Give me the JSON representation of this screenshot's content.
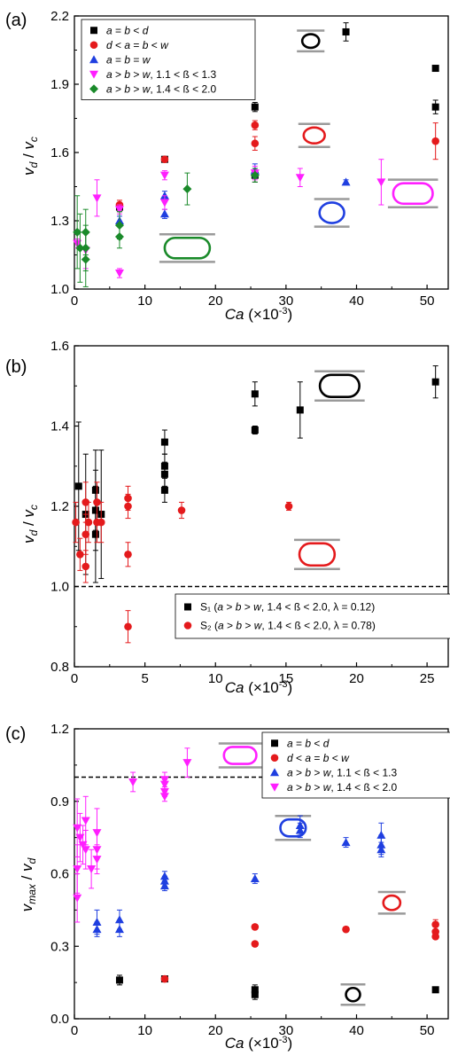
{
  "chart_data": [
    {
      "panel": "(a)",
      "type": "scatter",
      "xlabel": "Ca (×10⁻³)",
      "ylabel": "vd / vc",
      "xlim": [
        0,
        53
      ],
      "ylim": [
        1.0,
        2.2
      ],
      "xticks": [
        0,
        10,
        20,
        30,
        40,
        50
      ],
      "yticks": [
        1.0,
        1.3,
        1.6,
        1.9,
        2.2
      ],
      "ytick_labels": [
        "1.0",
        "1.3",
        "1.6",
        "1.9",
        "2.2"
      ],
      "legend_position": "top-left",
      "refline": null,
      "series": [
        {
          "name": "a = b < d",
          "color": "#000000",
          "marker": "square",
          "points": [
            [
              6.4,
              1.36
            ],
            [
              12.8,
              1.57
            ],
            [
              25.6,
              1.8
            ],
            [
              25.6,
              1.5
            ],
            [
              38.5,
              2.13
            ],
            [
              51.2,
              1.97
            ],
            [
              51.2,
              1.8
            ]
          ],
          "err": [
            0.02,
            0.01,
            0.02,
            0.03,
            0.04,
            0.01,
            0.03
          ]
        },
        {
          "name": "d < a = b < w",
          "color": "#e41a1c",
          "marker": "circle",
          "points": [
            [
              6.4,
              1.37
            ],
            [
              12.8,
              1.57
            ],
            [
              25.6,
              1.72
            ],
            [
              25.6,
              1.64
            ],
            [
              51.2,
              1.65
            ]
          ],
          "err": [
            0.02,
            0.01,
            0.02,
            0.03,
            0.08
          ]
        },
        {
          "name": "a = b = w",
          "color": "#1f3fe0",
          "marker": "triangle-up",
          "points": [
            [
              6.4,
              1.3
            ],
            [
              12.8,
              1.41
            ],
            [
              12.8,
              1.33
            ],
            [
              25.6,
              1.52
            ],
            [
              38.5,
              1.47
            ]
          ],
          "err": [
            0.02,
            0.02,
            0.02,
            0.03,
            0.01
          ]
        },
        {
          "name": "a > b > w, 1.1 < ß < 1.3",
          "color": "#ff1fff",
          "marker": "triangle-down",
          "points": [
            [
              0.4,
              1.2
            ],
            [
              1.6,
              1.17
            ],
            [
              3.2,
              1.4
            ],
            [
              6.4,
              1.07
            ],
            [
              6.4,
              1.35
            ],
            [
              12.8,
              1.5
            ],
            [
              12.8,
              1.38
            ],
            [
              25.6,
              1.51
            ],
            [
              32,
              1.49
            ],
            [
              43.5,
              1.47
            ]
          ],
          "err": [
            0.02,
            0.08,
            0.08,
            0.02,
            0.02,
            0.02,
            0.03,
            0.03,
            0.04,
            0.1
          ]
        },
        {
          "name": "a > b > w, 1.4 < ß < 2.0",
          "color": "#1a8a2a",
          "marker": "diamond",
          "points": [
            [
              0.4,
              1.25
            ],
            [
              0.8,
              1.18
            ],
            [
              1.6,
              1.25
            ],
            [
              1.6,
              1.18
            ],
            [
              1.6,
              1.13
            ],
            [
              6.4,
              1.28
            ],
            [
              6.4,
              1.23
            ],
            [
              16,
              1.44
            ],
            [
              25.6,
              1.5
            ]
          ],
          "err": [
            0.16,
            0.15,
            0.1,
            0.1,
            0.12,
            0.06,
            0.05,
            0.07,
            0.03
          ]
        }
      ],
      "insets": [
        {
          "shape": "stadium",
          "color": "#1a8a2a",
          "x": 16,
          "y": 1.18,
          "w": 6.4,
          "h": 0.09
        },
        {
          "shape": "circle",
          "color": "#1f3fe0",
          "x": 36.5,
          "y": 1.335,
          "w": 3.5,
          "h": 0.09
        },
        {
          "shape": "stadium",
          "color": "#ff1fff",
          "x": 48,
          "y": 1.42,
          "w": 5.6,
          "h": 0.09
        },
        {
          "shape": "circle",
          "color": "#e41a1c",
          "x": 34,
          "y": 1.675,
          "w": 3.0,
          "h": 0.07
        },
        {
          "shape": "circle",
          "color": "#000000",
          "x": 33.5,
          "y": 2.09,
          "w": 2.4,
          "h": 0.06
        }
      ]
    },
    {
      "panel": "(b)",
      "type": "scatter",
      "xlabel": "Ca (×10⁻³)",
      "ylabel": "vd / vc",
      "xlim": [
        0,
        26.5
      ],
      "ylim": [
        0.8,
        1.6
      ],
      "xticks": [
        0,
        5,
        10,
        15,
        20,
        25
      ],
      "yticks": [
        0.8,
        1.0,
        1.2,
        1.4,
        1.6
      ],
      "ytick_labels": [
        "0.8",
        "1.0",
        "1.2",
        "1.4",
        "1.6"
      ],
      "legend_position": "bottom-right",
      "refline": 1.0,
      "series": [
        {
          "name": "S₁ (a > b > w, 1.4 < ß < 2.0, λ = 0.12)",
          "color": "#000000",
          "marker": "square",
          "points": [
            [
              0.3,
              1.25
            ],
            [
              0.8,
              1.18
            ],
            [
              1.5,
              1.24
            ],
            [
              1.5,
              1.19
            ],
            [
              1.5,
              1.13
            ],
            [
              1.9,
              1.18
            ],
            [
              6.4,
              1.36
            ],
            [
              6.4,
              1.3
            ],
            [
              6.4,
              1.28
            ],
            [
              6.4,
              1.24
            ],
            [
              12.8,
              1.48
            ],
            [
              12.8,
              1.39
            ],
            [
              16,
              1.44
            ],
            [
              25.6,
              1.51
            ]
          ],
          "err": [
            0.16,
            0.15,
            0.1,
            0.1,
            0.12,
            0.16,
            0.03,
            0.03,
            0.03,
            0.03,
            0.03,
            0.01,
            0.07,
            0.04
          ]
        },
        {
          "name": "S₂ (a > b > w, 1.4 < ß < 2.0, λ = 0.78)",
          "color": "#e41a1c",
          "marker": "circle",
          "points": [
            [
              0.1,
              1.16
            ],
            [
              0.4,
              1.08
            ],
            [
              0.8,
              1.21
            ],
            [
              0.8,
              1.13
            ],
            [
              0.8,
              1.05
            ],
            [
              1.0,
              1.16
            ],
            [
              1.6,
              1.21
            ],
            [
              1.6,
              1.16
            ],
            [
              1.9,
              1.16
            ],
            [
              3.8,
              1.22
            ],
            [
              3.8,
              1.2
            ],
            [
              3.8,
              1.08
            ],
            [
              3.8,
              0.9
            ],
            [
              7.6,
              1.19
            ],
            [
              15.2,
              1.2
            ]
          ],
          "err": [
            0.05,
            0.04,
            0.05,
            0.05,
            0.04,
            0.05,
            0.05,
            0.05,
            0.05,
            0.03,
            0.03,
            0.03,
            0.04,
            0.02,
            0.01
          ]
        }
      ],
      "insets": [
        {
          "shape": "stadium",
          "color": "#000000",
          "x": 18.8,
          "y": 1.5,
          "w": 2.8,
          "h": 0.055
        },
        {
          "shape": "stadium",
          "color": "#e41a1c",
          "x": 17.2,
          "y": 1.08,
          "w": 2.5,
          "h": 0.055
        }
      ]
    },
    {
      "panel": "(c)",
      "type": "scatter",
      "xlabel": "Ca (×10⁻³)",
      "ylabel": "vmax / vd",
      "xlim": [
        0,
        53
      ],
      "ylim": [
        0.0,
        1.2
      ],
      "xticks": [
        0,
        10,
        20,
        30,
        40,
        50
      ],
      "yticks": [
        0.0,
        0.3,
        0.6,
        0.9,
        1.2
      ],
      "ytick_labels": [
        "0.0",
        "0.3",
        "0.6",
        "0.9",
        "1.2"
      ],
      "legend_position": "top-right",
      "refline": 1.0,
      "series": [
        {
          "name": "a = b < d",
          "color": "#000000",
          "marker": "square",
          "points": [
            [
              6.4,
              0.16
            ],
            [
              12.8,
              0.165
            ],
            [
              25.6,
              0.12
            ],
            [
              25.6,
              0.1
            ],
            [
              51.2,
              0.12
            ]
          ],
          "err": [
            0.02,
            0.01,
            0.02,
            0.02,
            0.01
          ]
        },
        {
          "name": "d < a = b < w",
          "color": "#e41a1c",
          "marker": "circle",
          "points": [
            [
              12.8,
              0.165
            ],
            [
              25.6,
              0.38
            ],
            [
              25.6,
              0.31
            ],
            [
              38.5,
              0.37
            ],
            [
              51.2,
              0.39
            ],
            [
              51.2,
              0.36
            ],
            [
              51.2,
              0.34
            ]
          ],
          "err": [
            0.01,
            0.01,
            0.01,
            0.01,
            0.02,
            0.01,
            0.01
          ]
        },
        {
          "name": "a > b > w, 1.1 < ß < 1.3",
          "color": "#1f3fe0",
          "marker": "triangle-up",
          "points": [
            [
              3.2,
              0.4
            ],
            [
              3.2,
              0.37
            ],
            [
              6.4,
              0.41
            ],
            [
              6.4,
              0.37
            ],
            [
              12.8,
              0.59
            ],
            [
              12.8,
              0.57
            ],
            [
              12.8,
              0.55
            ],
            [
              25.6,
              0.58
            ],
            [
              32,
              0.8
            ],
            [
              32,
              0.78
            ],
            [
              38.5,
              0.73
            ],
            [
              43.5,
              0.76
            ],
            [
              43.5,
              0.72
            ],
            [
              43.5,
              0.7
            ]
          ],
          "err": [
            0.05,
            0.03,
            0.04,
            0.03,
            0.02,
            0.02,
            0.02,
            0.02,
            0.04,
            0.03,
            0.02,
            0.05,
            0.04,
            0.03
          ]
        },
        {
          "name": "a > b > w, 1.4 < ß < 2.0",
          "color": "#ff1fff",
          "marker": "triangle-down",
          "points": [
            [
              0.4,
              0.79
            ],
            [
              0.4,
              0.62
            ],
            [
              0.4,
              0.5
            ],
            [
              0.8,
              0.75
            ],
            [
              1.2,
              0.72
            ],
            [
              1.6,
              0.82
            ],
            [
              1.6,
              0.7
            ],
            [
              2.4,
              0.62
            ],
            [
              3.2,
              0.77
            ],
            [
              3.2,
              0.7
            ],
            [
              3.2,
              0.66
            ],
            [
              8.3,
              0.98
            ],
            [
              12.8,
              0.99
            ],
            [
              12.8,
              0.97
            ],
            [
              12.8,
              0.94
            ],
            [
              12.8,
              0.92
            ],
            [
              16,
              1.06
            ]
          ],
          "err": [
            0.12,
            0.1,
            0.1,
            0.1,
            0.08,
            0.1,
            0.08,
            0.08,
            0.1,
            0.08,
            0.06,
            0.04,
            0.03,
            0.02,
            0.02,
            0.02,
            0.06
          ]
        }
      ],
      "insets": [
        {
          "shape": "stadium",
          "color": "#ff1fff",
          "x": 23.5,
          "y": 1.09,
          "w": 4.6,
          "h": 0.07
        },
        {
          "shape": "stadium",
          "color": "#1f3fe0",
          "x": 31,
          "y": 0.79,
          "w": 3.6,
          "h": 0.07
        },
        {
          "shape": "circle",
          "color": "#e41a1c",
          "x": 45,
          "y": 0.48,
          "w": 2.4,
          "h": 0.06
        },
        {
          "shape": "circle",
          "color": "#000000",
          "x": 39.5,
          "y": 0.1,
          "w": 2.0,
          "h": 0.055
        }
      ]
    }
  ]
}
